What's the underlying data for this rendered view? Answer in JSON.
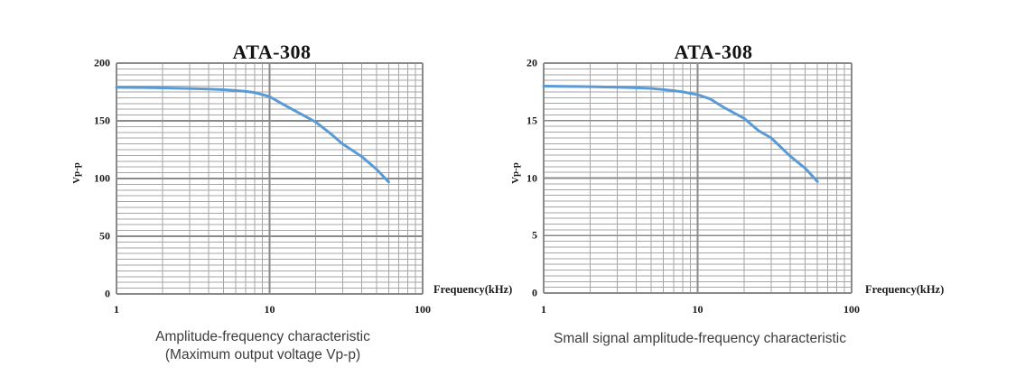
{
  "page": {
    "background": "#ffffff"
  },
  "chart_data": [
    {
      "type": "line",
      "title": "ATA-308",
      "xlabel": "Frequency(kHz)",
      "ylabel": "Vp-p",
      "caption_lines": [
        "Amplitude-frequency characteristic",
        "(Maximum output voltage Vp-p)"
      ],
      "x_scale": "log",
      "xlim": [
        1,
        100
      ],
      "ylim": [
        0,
        200
      ],
      "y_major_step": 50,
      "y_minor_step": 5,
      "x_tick_values": [
        1,
        10,
        100
      ],
      "x_tick_labels": [
        "1",
        "10",
        "100"
      ],
      "y_tick_values": [
        0,
        50,
        100,
        150,
        200
      ],
      "y_tick_labels": [
        "0",
        "50",
        "100",
        "150",
        "200"
      ],
      "grid": true,
      "legend": "none",
      "line_color": "#5B9BD5",
      "grid_minor_color": "#a6a6a6",
      "grid_major_color": "#8a8a8a",
      "series": [
        {
          "name": "Maximum output voltage Vp-p",
          "x": [
            1,
            1.5,
            2,
            3,
            4,
            5,
            6,
            7,
            8,
            10,
            12,
            15,
            20,
            25,
            30,
            40,
            50,
            60
          ],
          "y": [
            179,
            178.8,
            178.5,
            178,
            177.5,
            177,
            176.3,
            175.5,
            174.5,
            171,
            165,
            158,
            149,
            139,
            130,
            119,
            108,
            97
          ]
        }
      ]
    },
    {
      "type": "line",
      "title": "ATA-308",
      "xlabel": "Frequency(kHz)",
      "ylabel": "Vp-p",
      "caption_lines": [
        "Small signal amplitude-frequency characteristic"
      ],
      "x_scale": "log",
      "xlim": [
        1,
        100
      ],
      "ylim": [
        0,
        20
      ],
      "y_major_step": 5,
      "y_minor_step": 0.5,
      "x_tick_values": [
        1,
        10,
        100
      ],
      "x_tick_labels": [
        "1",
        "10",
        "100"
      ],
      "y_tick_values": [
        0,
        5,
        10,
        15,
        20
      ],
      "y_tick_labels": [
        "0",
        "5",
        "10",
        "15",
        "20"
      ],
      "grid": true,
      "legend": "none",
      "line_color": "#5B9BD5",
      "grid_minor_color": "#a6a6a6",
      "grid_major_color": "#8a8a8a",
      "series": [
        {
          "name": "Small signal Vp-p",
          "x": [
            1,
            1.5,
            2,
            3,
            4,
            5,
            6,
            7,
            8,
            10,
            12,
            15,
            20,
            25,
            30,
            40,
            50,
            60
          ],
          "y": [
            18,
            17.97,
            17.95,
            17.9,
            17.85,
            17.8,
            17.7,
            17.6,
            17.5,
            17.25,
            16.9,
            16.1,
            15.2,
            14.1,
            13.5,
            11.9,
            10.85,
            9.7
          ]
        }
      ]
    }
  ]
}
